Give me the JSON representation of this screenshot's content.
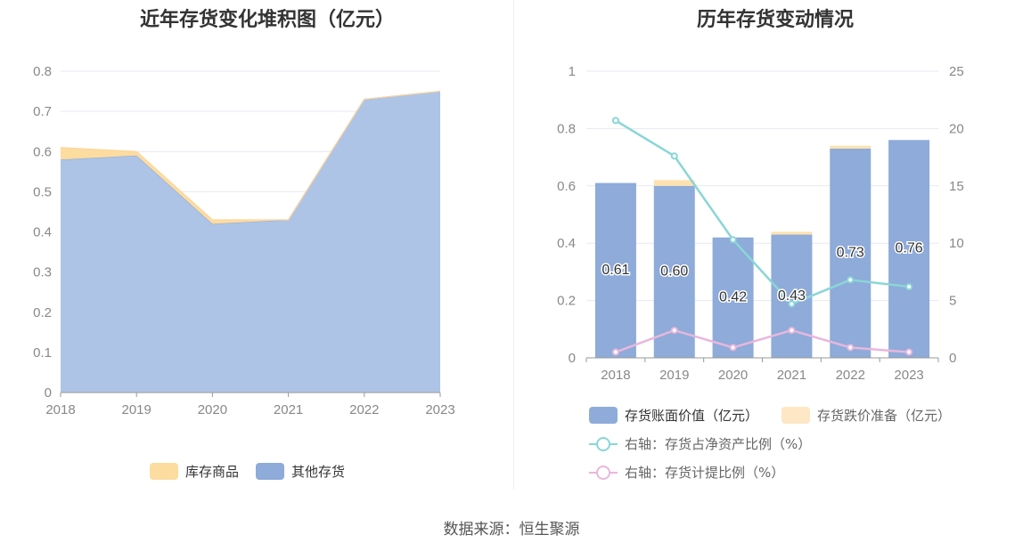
{
  "left_chart": {
    "title": "近年存货变化堆积图（亿元）",
    "legend": [
      {
        "name": "库存商品",
        "color": "#fddca0"
      },
      {
        "name": "其他存货",
        "color": "#8eabd9"
      }
    ]
  },
  "right_chart": {
    "title": "历年存货变动情况",
    "legend": [
      {
        "name": "存货账面价值（亿元）",
        "color": "#8eabd9"
      },
      {
        "name": "存货跌价准备（亿元）",
        "color": "#fde7c4"
      },
      {
        "name": "右轴：存货占净资产比例（%）",
        "color": "#8ad6d6"
      },
      {
        "name": "右轴：存货计提比例（%）",
        "color": "#e8b7dc"
      }
    ]
  },
  "source": "数据来源：恒生聚源",
  "chart_data": [
    {
      "type": "area",
      "stacked": true,
      "title": "近年存货变化堆积图（亿元）",
      "x": [
        "2018",
        "2019",
        "2020",
        "2021",
        "2022",
        "2023"
      ],
      "series": [
        {
          "name": "其他存货",
          "values": [
            0.58,
            0.59,
            0.42,
            0.43,
            0.73,
            0.75
          ],
          "color": "#aec4e6"
        },
        {
          "name": "库存商品",
          "values": [
            0.03,
            0.01,
            0.01,
            0.0,
            0.0,
            0.0
          ],
          "color": "#fddca0"
        }
      ],
      "ylim": [
        0,
        0.8
      ],
      "yticks": [
        "0",
        "0.1",
        "0.2",
        "0.3",
        "0.4",
        "0.5",
        "0.6",
        "0.7",
        "0.8"
      ],
      "grid": true,
      "legend_position": "bottom"
    },
    {
      "type": "bar",
      "stacked": true,
      "title": "历年存货变动情况",
      "categories": [
        "2018",
        "2019",
        "2020",
        "2021",
        "2022",
        "2023"
      ],
      "series": [
        {
          "name": "存货账面价值（亿元）",
          "values": [
            0.61,
            0.6,
            0.42,
            0.43,
            0.73,
            0.76
          ],
          "labels": [
            "0.61",
            "0.60",
            "0.42",
            "0.43",
            "0.73",
            "0.76"
          ],
          "color": "#8eabd9"
        },
        {
          "name": "存货跌价准备（亿元）",
          "values": [
            0.0,
            0.02,
            0.0,
            0.01,
            0.01,
            0.0
          ],
          "color": "#fde2b0"
        },
        {
          "name": "右轴：存货占净资产比例（%）",
          "axis": "right",
          "type": "line",
          "values": [
            20.7,
            17.6,
            10.3,
            4.7,
            6.8,
            6.2
          ],
          "color": "#8ad6d6"
        },
        {
          "name": "右轴：存货计提比例（%）",
          "axis": "right",
          "type": "line",
          "values": [
            0.5,
            2.4,
            0.9,
            2.4,
            0.9,
            0.5
          ],
          "color": "#e8b7dc"
        }
      ],
      "ylim_left": [
        0,
        1
      ],
      "yticks_left": [
        "0",
        "0.2",
        "0.4",
        "0.6",
        "0.8",
        "1"
      ],
      "ylim_right": [
        0,
        25
      ],
      "yticks_right": [
        "0",
        "5",
        "10",
        "15",
        "20",
        "25"
      ],
      "grid": true,
      "legend_position": "bottom"
    }
  ]
}
